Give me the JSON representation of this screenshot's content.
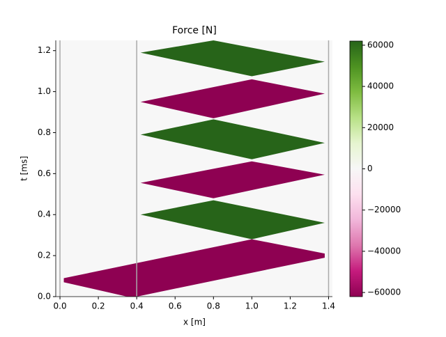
{
  "chart_data": {
    "type": "heatmap",
    "title": "Force [N]",
    "x_label": "x [m]",
    "y_label": "t [ms]",
    "xlim": [
      -0.022,
      1.42
    ],
    "ylim": [
      0,
      1.25
    ],
    "xticks": [
      {
        "value": 0,
        "label": "0.0"
      },
      0.2,
      0.4,
      0.6,
      0.8,
      {
        "value": 1,
        "label": "1.0"
      },
      1.2,
      1.4
    ],
    "yticks": [
      {
        "value": 0,
        "label": "0.0"
      },
      0.2,
      0.4,
      0.6,
      0.8,
      {
        "value": 1,
        "label": "1.0"
      },
      1.2
    ],
    "vlines": [
      0,
      0.4,
      1.4
    ],
    "vline_color": "#aaaaaa",
    "clim": [
      -62000,
      62000
    ],
    "colorbar_ticks": [
      {
        "value": -60000,
        "label": "−60000"
      },
      {
        "value": -40000,
        "label": "−40000"
      },
      {
        "value": -20000,
        "label": "−20000"
      },
      0,
      20000,
      40000,
      60000
    ],
    "colormap": [
      "#8e0152",
      "#c51b7d",
      "#de77ae",
      "#f1b6da",
      "#fde0ef",
      "#f7f7f7",
      "#e6f5d0",
      "#b8e186",
      "#7fbc41",
      "#4d9221",
      "#276419"
    ],
    "regions": [
      {
        "value": -62000,
        "x": [
          0.02,
          0.35,
          0.4,
          1.38,
          1.38,
          1.0,
          0.02
        ],
        "t": [
          0.07,
          0,
          0,
          0.19,
          0.21,
          0.28,
          0.09
        ]
      },
      {
        "value": 62000,
        "x": [
          0.42,
          0.8,
          1.38,
          1.0
        ],
        "t": [
          0.4,
          0.47,
          0.36,
          0.28
        ]
      },
      {
        "value": -62000,
        "x": [
          0.42,
          1.0,
          1.38,
          0.8
        ],
        "t": [
          0.555,
          0.66,
          0.595,
          0.48
        ]
      },
      {
        "value": 62000,
        "x": [
          0.42,
          0.8,
          1.38,
          1.0
        ],
        "t": [
          0.79,
          0.865,
          0.75,
          0.67
        ]
      },
      {
        "value": -62000,
        "x": [
          0.42,
          1.0,
          1.38,
          0.8
        ],
        "t": [
          0.95,
          1.06,
          0.99,
          0.87
        ]
      },
      {
        "value": 62000,
        "x": [
          0.42,
          0.8,
          1.38,
          1.0
        ],
        "t": [
          1.19,
          1.25,
          1.146,
          1.075
        ]
      }
    ]
  }
}
